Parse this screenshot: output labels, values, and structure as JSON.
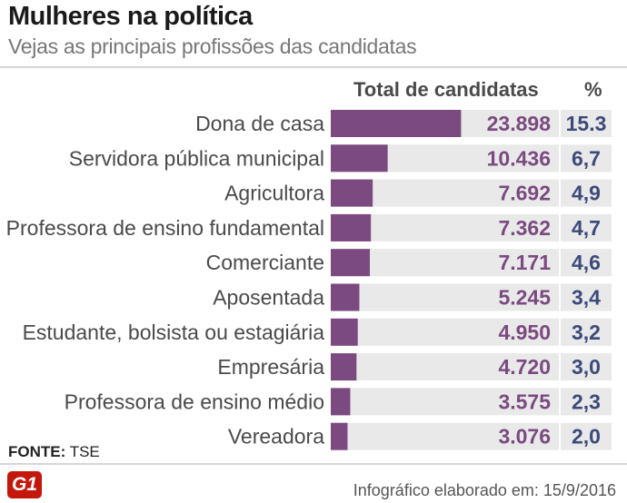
{
  "header": {
    "title": "Mulheres na política",
    "subtitle": "Vejas as principais profissões das candidatas"
  },
  "columns": {
    "total_label": "Total de candidatas",
    "pct_label": "%"
  },
  "chart_data": {
    "type": "bar",
    "orientation": "horizontal",
    "title": "Mulheres na política",
    "subtitle": "Vejas as principais profissões das candidatas",
    "categories": [
      "Dona de casa",
      "Servidora pública municipal",
      "Agricultora",
      "Professora de ensino fundamental",
      "Comerciante",
      "Aposentada",
      "Estudante, bolsista ou estagiária",
      "Empresária",
      "Professora de ensino médio",
      "Vereadora"
    ],
    "values": [
      23898,
      10436,
      7692,
      7362,
      7171,
      5245,
      4950,
      4720,
      3575,
      3076
    ],
    "value_labels": [
      "23.898",
      "10.436",
      "7.692",
      "7.362",
      "7.171",
      "5.245",
      "4.950",
      "4.720",
      "3.575",
      "3.076"
    ],
    "percent_labels": [
      "15.3",
      "6,7",
      "4,9",
      "4,7",
      "4,6",
      "3,4",
      "3,2",
      "3,0",
      "2,3",
      "2,0"
    ],
    "percents": [
      15.3,
      6.7,
      4.9,
      4.7,
      4.6,
      3.4,
      3.2,
      3.0,
      2.3,
      2.0
    ],
    "xlim": [
      0,
      100000
    ],
    "colors": {
      "bar": "#7a4a80",
      "track": "#e9e9e9",
      "value_text": "#7a4a80",
      "percent_text": "#3d4a7a"
    }
  },
  "footer": {
    "source_label": "FONTE:",
    "source_value": "TSE",
    "logo_text": "G1",
    "credit": "Infográfico elaborado em: 15/9/2016"
  }
}
